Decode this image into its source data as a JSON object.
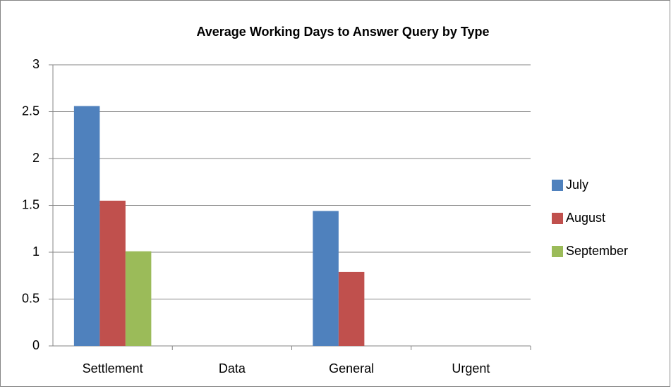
{
  "chart_data": {
    "type": "bar",
    "title": "Average Working Days to Answer Query by Type",
    "categories": [
      "Settlement",
      "Data",
      "General",
      "Urgent"
    ],
    "series": [
      {
        "name": "July",
        "color": "#4f81bd",
        "values": [
          2.56,
          null,
          1.44,
          null
        ]
      },
      {
        "name": "August",
        "color": "#c0504d",
        "values": [
          1.55,
          null,
          0.79,
          null
        ]
      },
      {
        "name": "September",
        "color": "#9bbb59",
        "values": [
          1.01,
          null,
          null,
          null
        ]
      }
    ],
    "ylim": [
      0,
      3
    ],
    "yticks": [
      0,
      0.5,
      1,
      1.5,
      2,
      2.5,
      3
    ],
    "grid": true,
    "legend": "right"
  }
}
